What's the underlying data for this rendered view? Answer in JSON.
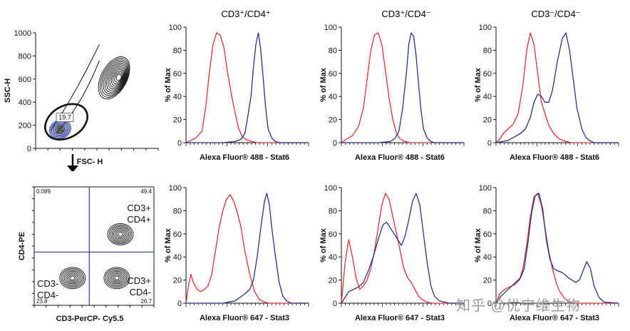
{
  "col_titles": [
    "CD3⁺/CD4⁺",
    "CD3⁺/CD4⁻",
    "CD3⁻/CD4⁻"
  ],
  "colors": {
    "red": "#e03030",
    "blue": "#23328f",
    "black": "#111111",
    "gate_blue": "#2a3d9a"
  },
  "watermark": "知乎 @优宁维生物",
  "chart_data": [
    {
      "type": "contour",
      "id": "scatter",
      "xlabel": "FSC- H",
      "ylabel": "SSC-H",
      "yticks": [
        "0",
        "200",
        "400",
        "600",
        "800",
        "1000"
      ],
      "ytick_values": [
        0,
        200,
        400,
        600,
        800,
        1000
      ],
      "xlim": [
        0,
        1000
      ],
      "ylim": [
        0,
        1000
      ],
      "gate": {
        "label": "19.7",
        "center": [
          250,
          230
        ],
        "radii": [
          160,
          110
        ]
      },
      "populations": [
        {
          "name": "cluster-high",
          "center": [
            640,
            610
          ],
          "spread": [
            170,
            300
          ],
          "levels": 12
        },
        {
          "name": "cluster-low",
          "center": [
            200,
            165
          ],
          "spread": [
            90,
            80
          ],
          "levels": 10
        }
      ]
    },
    {
      "type": "contour",
      "id": "quadrant",
      "xlabel": "CD3-PerCP- Cy5.5",
      "ylabel": "CD4-PE",
      "quadrant_values": {
        "top_left": "0.089",
        "top_right": "49.4",
        "bottom_left": "23.8",
        "bottom_right": "26.7"
      },
      "quadrant_labels": {
        "top_right": [
          "CD3+",
          "CD4+"
        ],
        "bottom_left": [
          "CD3-",
          "CD4-"
        ],
        "bottom_right": [
          "CD3+",
          "CD4-"
        ]
      },
      "gate_divider": {
        "x": 0.46,
        "y": 0.55
      },
      "populations": [
        {
          "name": "cd3-cd4+",
          "center": [
            0.72,
            0.4
          ]
        },
        {
          "name": "cd3-cd4-",
          "center": [
            0.32,
            0.77
          ]
        },
        {
          "name": "cd3+cd4-",
          "center": [
            0.69,
            0.77
          ]
        }
      ]
    },
    {
      "type": "line",
      "id": "h11",
      "xlabel": "Alexa Fluor® 488 - Stat6",
      "ylabel": "% of Max",
      "ylim": [
        0,
        100
      ],
      "yticks": [
        0,
        20,
        40,
        60,
        80,
        100
      ],
      "series": [
        {
          "color": "red",
          "x": [
            0,
            4,
            8,
            13,
            16,
            19,
            22,
            25,
            28,
            31,
            34,
            37,
            40,
            43,
            46,
            50,
            54,
            58,
            62,
            66,
            70,
            100
          ],
          "y": [
            0,
            2,
            4,
            10,
            30,
            60,
            85,
            95,
            93,
            82,
            60,
            42,
            26,
            12,
            5,
            2,
            1,
            0,
            0,
            0,
            0,
            0
          ]
        },
        {
          "color": "blue",
          "x": [
            0,
            30,
            40,
            45,
            48,
            50,
            53,
            55,
            57,
            59,
            61,
            63,
            65,
            67,
            70,
            73,
            76,
            100
          ],
          "y": [
            0,
            0,
            1,
            3,
            8,
            20,
            40,
            65,
            85,
            95,
            80,
            55,
            30,
            12,
            4,
            1,
            0,
            0
          ]
        }
      ]
    },
    {
      "type": "line",
      "id": "h12",
      "xlabel": "Alexa Fluor® 488 - Stat6",
      "ylabel": "% of Max",
      "ylim": [
        0,
        100
      ],
      "yticks": [
        0,
        20,
        40,
        60,
        80,
        100
      ],
      "series": [
        {
          "color": "red",
          "x": [
            0,
            4,
            9,
            14,
            18,
            21,
            24,
            27,
            30,
            33,
            36,
            39,
            42,
            45,
            48,
            52,
            56,
            60,
            100
          ],
          "y": [
            0,
            3,
            6,
            14,
            30,
            55,
            80,
            93,
            95,
            85,
            62,
            38,
            20,
            8,
            3,
            1,
            0,
            0,
            0
          ]
        },
        {
          "color": "blue",
          "x": [
            0,
            30,
            40,
            44,
            47,
            50,
            53,
            55,
            57,
            59,
            61,
            63,
            65,
            67,
            70,
            73,
            76,
            100
          ],
          "y": [
            0,
            0,
            1,
            4,
            10,
            30,
            60,
            85,
            95,
            92,
            75,
            50,
            28,
            12,
            4,
            1,
            0,
            0
          ]
        }
      ]
    },
    {
      "type": "line",
      "id": "h13",
      "xlabel": "Alexa Fluor® 488 - Stat6",
      "ylabel": "% of Max",
      "ylim": [
        0,
        100
      ],
      "yticks": [
        0,
        20,
        40,
        60,
        80,
        100
      ],
      "series": [
        {
          "color": "red",
          "x": [
            0,
            3,
            6,
            10,
            14,
            18,
            22,
            25,
            28,
            31,
            34,
            37,
            40,
            43,
            47,
            52,
            57,
            62,
            100
          ],
          "y": [
            0,
            3,
            8,
            12,
            16,
            25,
            50,
            80,
            95,
            85,
            60,
            35,
            25,
            15,
            8,
            3,
            1,
            0,
            0
          ]
        },
        {
          "color": "blue",
          "x": [
            0,
            10,
            15,
            20,
            24,
            28,
            31,
            34,
            37,
            40,
            43,
            46,
            50,
            54,
            57,
            60,
            63,
            66,
            70,
            73,
            76,
            80,
            100
          ],
          "y": [
            0,
            2,
            5,
            8,
            12,
            22,
            35,
            42,
            40,
            35,
            35,
            45,
            70,
            90,
            95,
            80,
            55,
            30,
            12,
            5,
            2,
            0,
            0
          ]
        }
      ]
    },
    {
      "type": "line",
      "id": "h21",
      "xlabel": "Alexa Fluor® 647 - Stat3",
      "ylabel": "% of Max",
      "ylim": [
        0,
        100
      ],
      "yticks": [
        0,
        20,
        40,
        60,
        80,
        100
      ],
      "series": [
        {
          "color": "red",
          "x": [
            0,
            2,
            4,
            6,
            9,
            12,
            15,
            18,
            21,
            24,
            27,
            30,
            33,
            36,
            39,
            42,
            45,
            48,
            52,
            56,
            60,
            64,
            68,
            100
          ],
          "y": [
            0,
            15,
            25,
            18,
            12,
            10,
            12,
            15,
            25,
            45,
            65,
            80,
            90,
            94,
            88,
            78,
            65,
            45,
            25,
            10,
            3,
            1,
            0,
            0
          ]
        },
        {
          "color": "blue",
          "x": [
            0,
            30,
            40,
            44,
            48,
            52,
            55,
            58,
            61,
            64,
            66,
            68,
            70,
            73,
            76,
            79,
            82,
            86,
            100
          ],
          "y": [
            0,
            0,
            2,
            5,
            8,
            12,
            20,
            40,
            65,
            88,
            95,
            85,
            65,
            40,
            18,
            6,
            2,
            0,
            0
          ]
        }
      ]
    },
    {
      "type": "line",
      "id": "h22",
      "xlabel": "Alexa Fluor® 647 - Stat3",
      "ylabel": "% of Max",
      "ylim": [
        0,
        100
      ],
      "yticks": [
        0,
        20,
        40,
        60,
        80,
        100
      ],
      "series": [
        {
          "color": "red",
          "x": [
            0,
            3,
            6,
            9,
            12,
            15,
            18,
            21,
            24,
            27,
            30,
            33,
            36,
            39,
            42,
            45,
            48,
            51,
            54,
            57,
            60,
            63,
            66,
            70,
            74,
            100
          ],
          "y": [
            0,
            35,
            55,
            40,
            22,
            12,
            15,
            20,
            30,
            45,
            65,
            85,
            95,
            90,
            75,
            60,
            45,
            30,
            22,
            18,
            12,
            6,
            3,
            1,
            0,
            0
          ]
        },
        {
          "color": "blue",
          "x": [
            0,
            3,
            6,
            10,
            14,
            18,
            22,
            26,
            30,
            34,
            37,
            40,
            43,
            46,
            49,
            52,
            55,
            58,
            61,
            64,
            67,
            70,
            73,
            76,
            80,
            84,
            88,
            100
          ],
          "y": [
            0,
            5,
            10,
            12,
            14,
            18,
            28,
            40,
            55,
            68,
            70,
            65,
            60,
            55,
            50,
            58,
            72,
            88,
            95,
            85,
            60,
            35,
            15,
            6,
            2,
            1,
            0,
            0
          ]
        }
      ]
    },
    {
      "type": "line",
      "id": "h23",
      "xlabel": "Alexa Fluor® 647 - Stat3",
      "ylabel": "% of Max",
      "ylim": [
        0,
        100
      ],
      "yticks": [
        0,
        20,
        40,
        60,
        80,
        100
      ],
      "series": [
        {
          "color": "red",
          "x": [
            0,
            3,
            7,
            11,
            15,
            19,
            22,
            25,
            28,
            31,
            34,
            37,
            40,
            43,
            46,
            49,
            52,
            56,
            60,
            64,
            68,
            100
          ],
          "y": [
            0,
            8,
            12,
            14,
            16,
            20,
            30,
            50,
            75,
            92,
            95,
            85,
            65,
            45,
            30,
            18,
            10,
            4,
            1,
            0,
            0,
            0
          ]
        },
        {
          "color": "blue",
          "x": [
            0,
            4,
            8,
            12,
            16,
            20,
            23,
            26,
            29,
            32,
            35,
            38,
            41,
            44,
            47,
            50,
            53,
            56,
            59,
            62,
            65,
            68,
            71,
            74,
            77,
            80,
            84,
            88,
            100
          ],
          "y": [
            0,
            6,
            10,
            14,
            18,
            22,
            30,
            52,
            78,
            93,
            95,
            82,
            55,
            38,
            30,
            28,
            27,
            25,
            22,
            20,
            18,
            20,
            28,
            36,
            30,
            15,
            5,
            1,
            0
          ]
        }
      ]
    }
  ]
}
